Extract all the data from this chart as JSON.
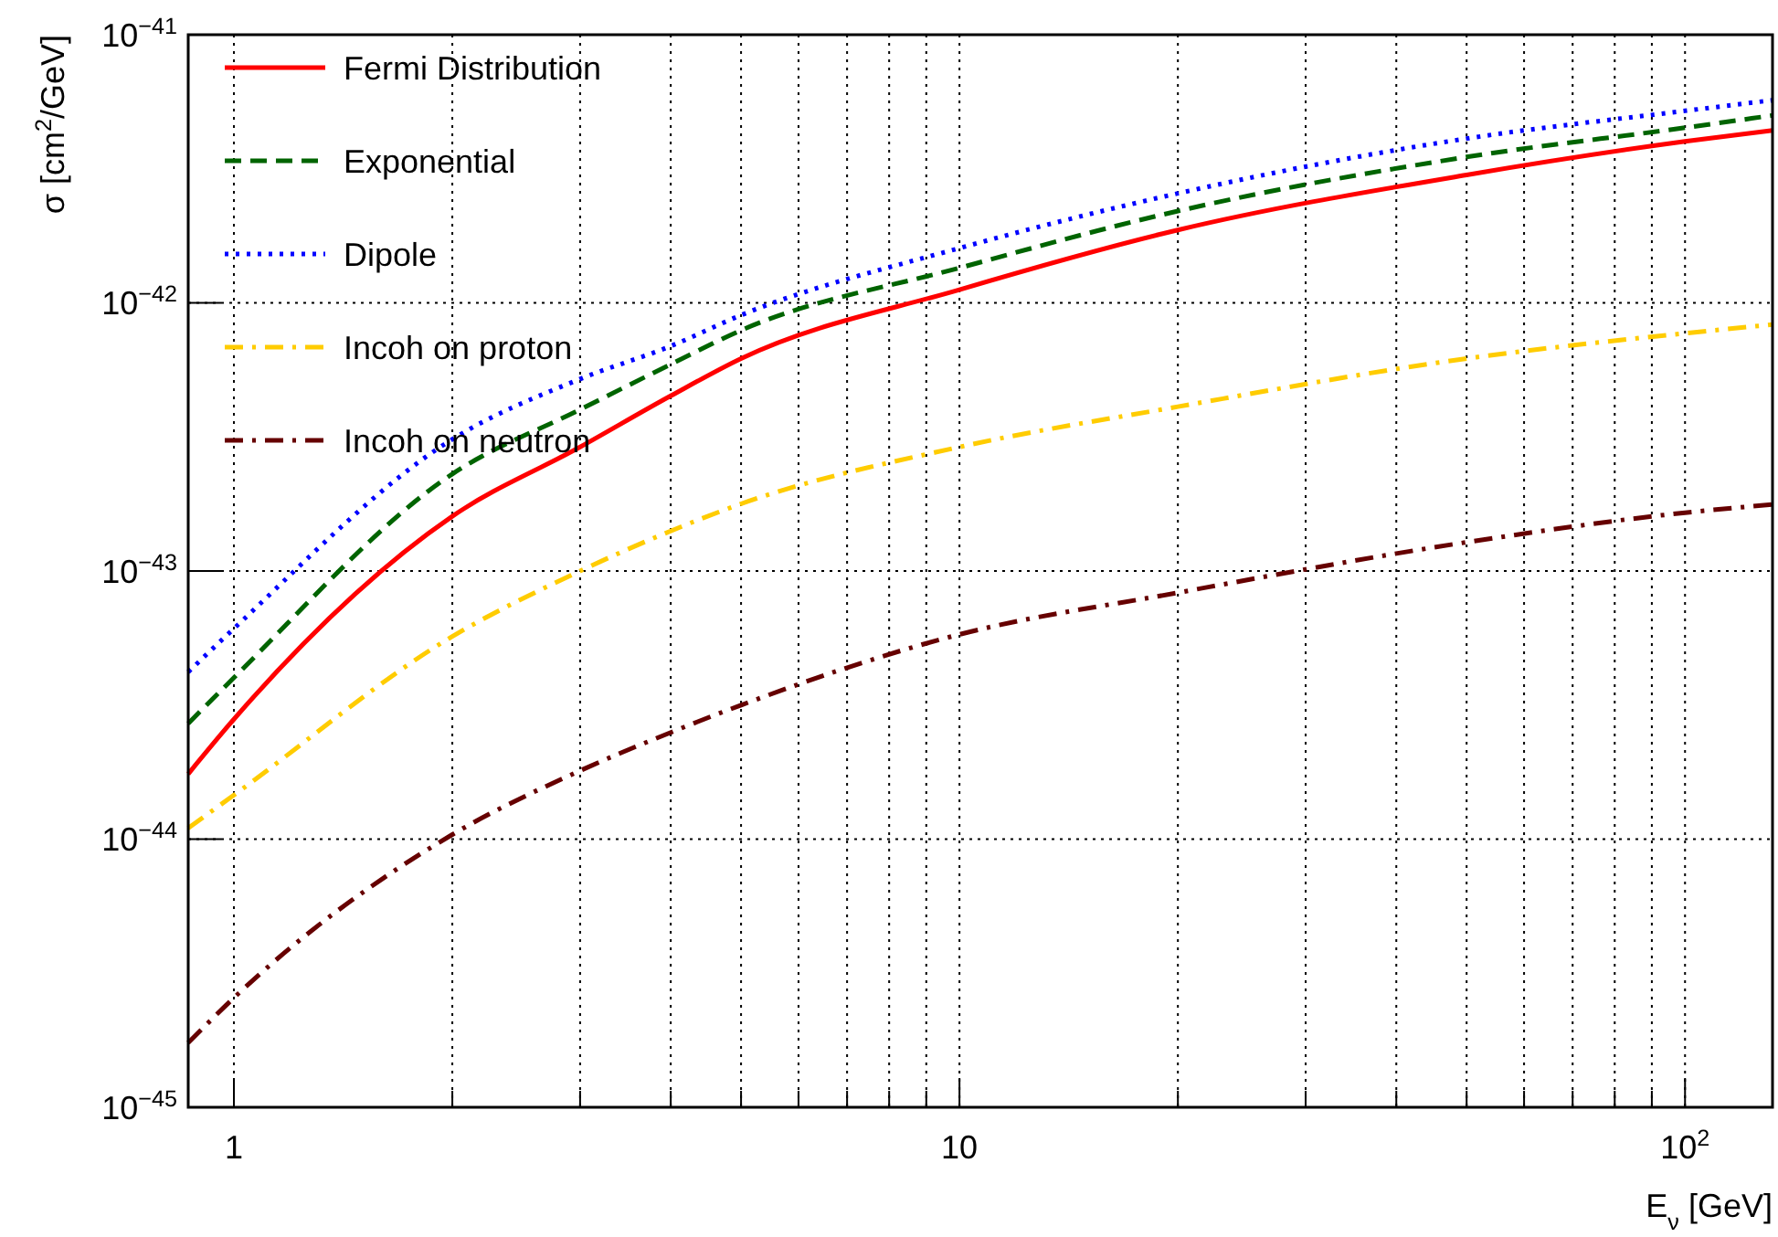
{
  "chart_data": {
    "type": "line",
    "xlabel": "E$_{ν}$ [GeV]",
    "ylabel": "σ [cm$^{2}$/GeV]",
    "x": [
      0.865,
      1,
      2,
      3,
      4,
      5,
      10,
      20,
      50,
      100,
      132
    ],
    "series": [
      {
        "name": "Fermi Distribution",
        "color": "#ff0000",
        "line_style": "solid",
        "values": [
          1.75e-44,
          2.8e-44,
          1.6e-43,
          2.9e-43,
          4.5e-43,
          6.2e-43,
          1.12e-42,
          1.87e-42,
          3e-42,
          4e-42,
          4.4e-42
        ]
      },
      {
        "name": "Exponential",
        "color": "#006400",
        "line_style": "dashed",
        "values": [
          2.7e-44,
          4e-44,
          2.3e-43,
          4e-43,
          5.9e-43,
          7.9e-43,
          1.35e-42,
          2.2e-42,
          3.5e-42,
          4.5e-42,
          5e-42
        ]
      },
      {
        "name": "Dipole",
        "color": "#0000ff",
        "line_style": "dotted",
        "values": [
          4.2e-44,
          6.1e-44,
          3.1e-43,
          5.2e-43,
          6.9e-43,
          9e-43,
          1.6e-42,
          2.56e-42,
          4.1e-42,
          5.2e-42,
          5.7e-42
        ]
      },
      {
        "name": "Incoh on proton",
        "color": "#ffcc00",
        "line_style": "dashdot",
        "values": [
          1.1e-44,
          1.46e-44,
          5.7e-44,
          1e-43,
          1.41e-43,
          1.78e-43,
          2.9e-43,
          4.1e-43,
          6.2e-43,
          7.7e-43,
          8.3e-43
        ]
      },
      {
        "name": "Incoh on neutron",
        "color": "#660000",
        "line_style": "dashdot",
        "values": [
          1.74e-45,
          2.56e-45,
          1.04e-44,
          1.8e-44,
          2.5e-44,
          3.16e-44,
          5.8e-44,
          8.3e-44,
          1.28e-43,
          1.65e-43,
          1.77e-43
        ]
      }
    ],
    "log": "xy",
    "xlim": [
      0.865,
      132
    ],
    "ylim": [
      1e-45,
      1e-41
    ],
    "xticks": [
      {
        "value": 1,
        "label": "1"
      },
      {
        "value": 2,
        "label": null
      },
      {
        "value": 3,
        "label": null
      },
      {
        "value": 4,
        "label": null
      },
      {
        "value": 5,
        "label": null
      },
      {
        "value": 6,
        "label": null
      },
      {
        "value": 7,
        "label": null
      },
      {
        "value": 8,
        "label": null
      },
      {
        "value": 9,
        "label": null
      },
      {
        "value": 10,
        "label": "10"
      },
      {
        "value": 20,
        "label": null
      },
      {
        "value": 30,
        "label": null
      },
      {
        "value": 40,
        "label": null
      },
      {
        "value": 50,
        "label": null
      },
      {
        "value": 60,
        "label": null
      },
      {
        "value": 70,
        "label": null
      },
      {
        "value": 80,
        "label": null
      },
      {
        "value": 90,
        "label": null
      },
      {
        "value": 100,
        "label": "10$^{2}$"
      }
    ],
    "yticks": [
      {
        "value": 1e-45,
        "label": "10$^{−45}$"
      },
      {
        "value": 1e-44,
        "label": "10$^{−44}$"
      },
      {
        "value": 1e-43,
        "label": "10$^{−43}$"
      },
      {
        "value": 1e-42,
        "label": "10$^{−42}$"
      },
      {
        "value": 1e-41,
        "label": "10$^{−41}$"
      }
    ],
    "grid": true,
    "legend": "top left"
  }
}
